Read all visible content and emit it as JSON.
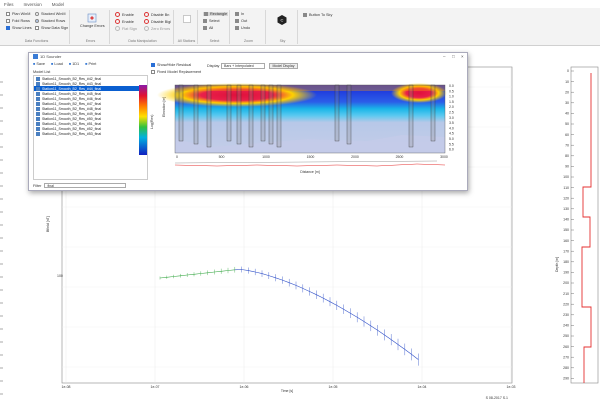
{
  "menubar": {
    "items": [
      "Files",
      "Inversion",
      "Model"
    ]
  },
  "ribbon": {
    "data_functions": {
      "label": "Data Functions",
      "items": [
        {
          "label": "Plan WinM",
          "checked": false
        },
        {
          "label": "Fold Rows",
          "checked": false
        },
        {
          "label": "Show Lines",
          "checked": true
        },
        {
          "label": "Stacked WinM",
          "checked": false
        },
        {
          "label": "Stacked Rows",
          "checked": true
        },
        {
          "label": "Show Data Sign",
          "checked": false
        }
      ]
    },
    "errors": {
      "label": "Errors",
      "button": "Change Errors"
    },
    "data_manipulation": {
      "label": "Data Manipulation",
      "items": [
        "Enable",
        "Enable",
        "Flat Sign",
        "Disable Bn",
        "Disable Bigi",
        "Zero Errors"
      ]
    },
    "all_stations": {
      "label": "All Stations"
    },
    "select": {
      "label": "Select",
      "items": [
        "Rectangle",
        "Select",
        "All"
      ]
    },
    "zoom": {
      "label": "Zoom",
      "items": [
        "In",
        "Out",
        "Undo"
      ]
    },
    "sky": {
      "label": "Sky"
    },
    "button_to_sky": "Button To Sky"
  },
  "dialog": {
    "title": "1D Sounder",
    "tools": [
      "Save",
      "Load",
      "1D1",
      "Print"
    ],
    "model_list_label": "Model List",
    "models": [
      "Station11_Smooth_B2_Res_#42_final",
      "Station11_Smooth_B2_Res_#43_final",
      "Station11_Smooth_B2_Res_#44_final",
      "Station11_Smooth_B2_Res_#45_final",
      "Station11_Smooth_B2_Res_#46_final",
      "Station11_Smooth_B2_Res_#47_final",
      "Station11_Smooth_B2_Res_#48_final",
      "Station11_Smooth_B2_Res_#49_final",
      "Station11_Smooth_B2_Res_#50_final",
      "Station11_Smooth_B2_Res_#51_final",
      "Station11_Smooth_B2_Res_#52_final",
      "Station11_Smooth_B2_Res_#53_final"
    ],
    "selected_index": 2,
    "filter_label": "Filter",
    "filter_value": "final",
    "show_residual": "Show/Hide Residual",
    "fixed_model": "Fixed Model Replacement",
    "display_label": "Display",
    "display_value": "Bars + Interpolated",
    "model_display_button": "Model Display",
    "x_label": "Distance [m]",
    "x_ticks": [
      "0",
      "500",
      "1000",
      "1500",
      "2000",
      "2500",
      "3000"
    ],
    "y_label": "Elevation [m]",
    "right_ticks": [
      "0.0",
      "0.5",
      "1.0",
      "1.5",
      "2.0",
      "2.5",
      "3.0",
      "3.5",
      "4.0",
      "4.5",
      "5.0",
      "5.5",
      "6.0"
    ],
    "colorbar_label": "Log(Res)"
  },
  "main_plot": {
    "x_label": "Time [s]",
    "y_label": "Bfield [nT]",
    "x_ticks": [
      "1e-08",
      "1e-07",
      "1e-06",
      "1e-05",
      "1e-04",
      "1e-03"
    ],
    "corner_text": "S 08-2017 S.1"
  },
  "depth_plot": {
    "y_label": "Depth [m]",
    "y_ticks": [
      "0",
      "10",
      "20",
      "30",
      "40",
      "50",
      "60",
      "70",
      "80",
      "90",
      "100",
      "110",
      "120",
      "130",
      "140",
      "150",
      "160",
      "170",
      "180",
      "190",
      "200",
      "210",
      "220",
      "230",
      "240",
      "250",
      "260",
      "270",
      "280",
      "290"
    ]
  }
}
